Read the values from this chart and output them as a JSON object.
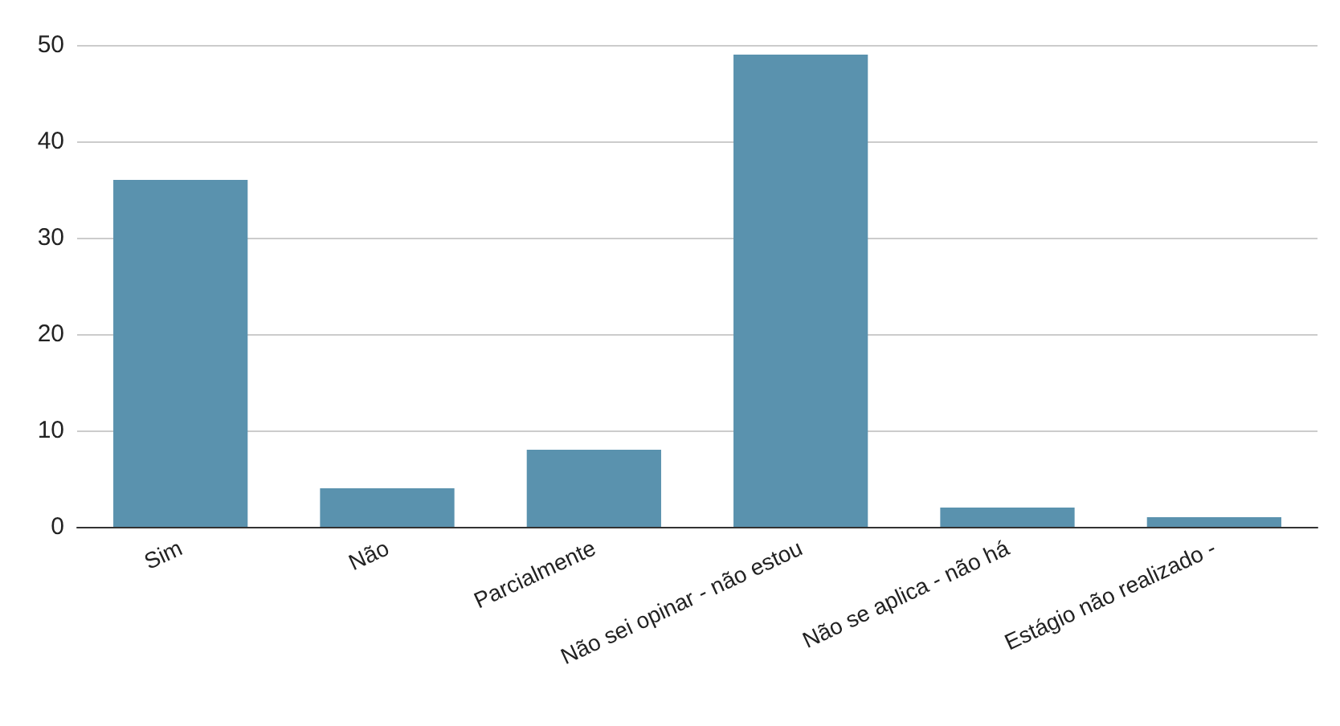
{
  "chart_data": {
    "type": "bar",
    "categories": [
      "Sim",
      "Não",
      "Parcialmente",
      "Não sei opinar - não estou",
      "Não se aplica - não há",
      "Estágio não realizado -"
    ],
    "values": [
      36,
      4,
      8,
      49,
      2,
      1
    ],
    "color": "#5a92ae",
    "ylim": [
      0,
      50
    ],
    "yticks": [
      0,
      10,
      20,
      30,
      40,
      50
    ],
    "grid": "y"
  }
}
